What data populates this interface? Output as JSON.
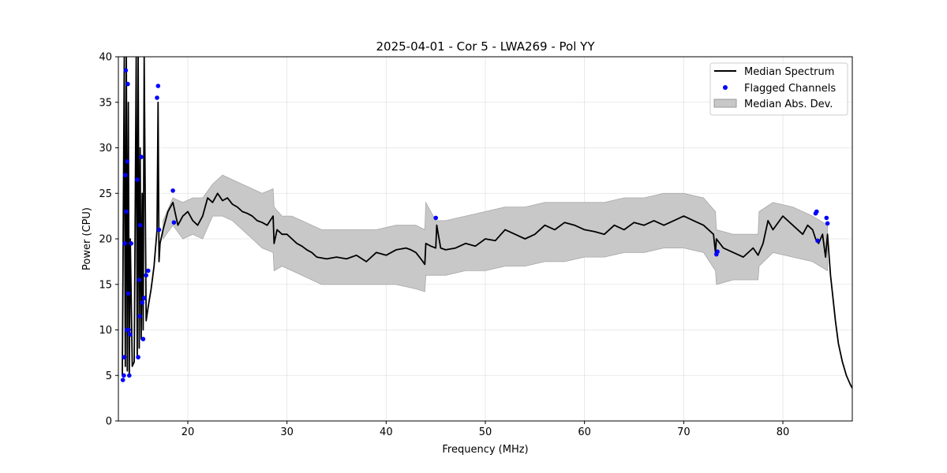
{
  "chart_data": {
    "type": "line",
    "title": "2025-04-01 - Cor 5 - LWA269 - Pol YY",
    "xlabel": "Frequency (MHz)",
    "ylabel": "Power (CPU)",
    "xlim": [
      13.0,
      87.0
    ],
    "ylim": [
      0,
      40
    ],
    "xticks": [
      20,
      30,
      40,
      50,
      60,
      70,
      80
    ],
    "yticks": [
      0,
      5,
      10,
      15,
      20,
      25,
      30,
      35,
      40
    ],
    "grid": true,
    "legend_position": "top-right",
    "legend": [
      {
        "label": "Median Spectrum",
        "kind": "line",
        "color": "#000000"
      },
      {
        "label": "Flagged Channels",
        "kind": "marker",
        "color": "#0000ff"
      },
      {
        "label": "Median Abs. Dev.",
        "kind": "patch",
        "color": "#c8c8c8"
      }
    ],
    "series": [
      {
        "name": "Median Spectrum",
        "color": "#000000",
        "x": [
          13.4,
          13.6,
          13.7,
          13.8,
          13.9,
          14.0,
          14.1,
          14.2,
          14.4,
          14.6,
          14.8,
          14.9,
          15.0,
          15.1,
          15.2,
          15.3,
          15.4,
          15.5,
          15.6,
          15.8,
          16.0,
          16.3,
          16.6,
          16.9,
          17.0,
          17.1,
          17.2,
          17.5,
          18.0,
          18.5,
          19.0,
          19.5,
          20.0,
          20.5,
          21.0,
          21.5,
          22.0,
          22.5,
          23.0,
          23.5,
          24.0,
          24.5,
          25.0,
          25.5,
          26.0,
          26.5,
          27.0,
          27.5,
          28.0,
          28.6,
          28.7,
          29.0,
          29.5,
          30.0,
          30.5,
          31.0,
          31.5,
          32.0,
          32.5,
          33.0,
          34.0,
          35.0,
          36.0,
          37.0,
          38.0,
          39.0,
          40.0,
          41.0,
          42.0,
          42.5,
          43.0,
          43.5,
          43.9,
          44.0,
          44.5,
          45.0,
          45.1,
          45.5,
          46.0,
          47.0,
          48.0,
          49.0,
          50.0,
          51.0,
          52.0,
          53.0,
          54.0,
          55.0,
          56.0,
          57.0,
          58.0,
          59.0,
          60.0,
          61.0,
          62.0,
          63.0,
          64.0,
          65.0,
          66.0,
          67.0,
          68.0,
          69.0,
          70.0,
          71.0,
          72.0,
          73.0,
          73.2,
          73.3,
          74.0,
          75.0,
          76.0,
          77.0,
          77.5,
          78.0,
          78.5,
          79.0,
          80.0,
          81.0,
          82.0,
          82.5,
          83.0,
          83.3,
          83.6,
          84.0,
          84.3,
          84.5,
          84.8,
          85.0,
          85.3,
          85.6,
          86.0,
          86.4,
          86.8,
          87.0
        ],
        "values": [
          5.0,
          40.0,
          6.0,
          40.0,
          5.5,
          35.0,
          5.0,
          20.0,
          6.0,
          6.5,
          40.0,
          7.0,
          40.0,
          8.0,
          30.0,
          9.0,
          25.0,
          10.0,
          40.0,
          11.0,
          12.5,
          14.5,
          17.0,
          21.0,
          35.0,
          17.5,
          19.5,
          21.0,
          23.0,
          24.0,
          21.5,
          22.5,
          23.0,
          22.0,
          21.5,
          22.5,
          24.5,
          24.0,
          25.0,
          24.2,
          24.5,
          23.8,
          23.5,
          23.0,
          22.8,
          22.5,
          22.0,
          21.8,
          21.5,
          22.5,
          19.5,
          21.0,
          20.5,
          20.5,
          20.0,
          19.5,
          19.2,
          18.8,
          18.5,
          18.0,
          17.8,
          18.0,
          17.8,
          18.2,
          17.5,
          18.5,
          18.2,
          18.8,
          19.0,
          18.8,
          18.5,
          17.8,
          17.2,
          19.5,
          19.2,
          19.0,
          21.5,
          19.0,
          18.8,
          19.0,
          19.5,
          19.2,
          20.0,
          19.8,
          21.0,
          20.5,
          20.0,
          20.5,
          21.5,
          21.0,
          21.8,
          21.5,
          21.0,
          20.8,
          20.5,
          21.5,
          21.0,
          21.8,
          21.5,
          22.0,
          21.5,
          22.0,
          22.5,
          22.0,
          21.5,
          20.5,
          18.5,
          20.0,
          19.0,
          18.5,
          18.0,
          19.0,
          18.2,
          19.5,
          22.0,
          21.0,
          22.5,
          21.5,
          20.5,
          21.5,
          21.0,
          20.0,
          19.5,
          20.5,
          18.0,
          20.5,
          16.0,
          14.0,
          11.0,
          8.5,
          6.5,
          5.0,
          4.0,
          3.6
        ]
      },
      {
        "name": "Median Abs. Dev.",
        "color": "#c8c8c8",
        "x": [
          17.5,
          18.5,
          19.5,
          20.5,
          21.5,
          22.5,
          23.5,
          24.5,
          25.5,
          26.5,
          27.5,
          28.6,
          28.7,
          29.5,
          30.5,
          31.5,
          32.5,
          33.5,
          35.0,
          37.0,
          39.0,
          41.0,
          43.0,
          43.9,
          44.0,
          45.0,
          46.0,
          48.0,
          50.0,
          52.0,
          54.0,
          56.0,
          58.0,
          60.0,
          62.0,
          64.0,
          66.0,
          68.0,
          70.0,
          72.0,
          73.2,
          73.3,
          75.0,
          77.5,
          77.6,
          79.0,
          81.0,
          83.0,
          84.5
        ],
        "upper": [
          22.0,
          24.5,
          24.0,
          24.5,
          24.5,
          26.0,
          27.0,
          26.5,
          26.0,
          25.5,
          25.0,
          25.5,
          23.5,
          22.5,
          22.5,
          22.0,
          21.5,
          21.0,
          21.0,
          21.0,
          21.0,
          21.5,
          21.5,
          21.0,
          24.0,
          22.0,
          22.0,
          22.5,
          23.0,
          23.5,
          23.5,
          24.0,
          24.0,
          24.0,
          24.0,
          24.5,
          24.5,
          25.0,
          25.0,
          24.5,
          23.0,
          21.0,
          20.5,
          20.5,
          23.0,
          24.0,
          23.5,
          22.5,
          21.5
        ],
        "lower": [
          20.0,
          21.5,
          20.0,
          20.5,
          20.0,
          22.5,
          22.5,
          22.0,
          21.0,
          20.0,
          19.0,
          18.5,
          16.5,
          17.0,
          16.5,
          16.0,
          15.5,
          15.0,
          15.0,
          15.0,
          15.0,
          15.0,
          14.5,
          14.2,
          16.0,
          16.0,
          16.0,
          16.5,
          16.5,
          17.0,
          17.0,
          17.5,
          17.5,
          18.0,
          18.0,
          18.5,
          18.5,
          19.0,
          19.0,
          18.5,
          16.5,
          15.0,
          15.5,
          15.5,
          17.0,
          18.5,
          18.0,
          17.5,
          16.5
        ]
      },
      {
        "name": "Flagged Channels",
        "color": "#0000ff",
        "x": [
          13.45,
          13.55,
          13.6,
          13.65,
          13.7,
          13.75,
          13.8,
          13.85,
          13.9,
          13.95,
          14.0,
          14.05,
          14.1,
          14.2,
          14.3,
          14.9,
          15.0,
          15.1,
          15.15,
          15.2,
          15.3,
          15.4,
          15.5,
          15.6,
          15.8,
          16.0,
          16.9,
          17.0,
          17.1,
          18.5,
          18.6,
          45.0,
          73.3,
          73.4,
          83.3,
          83.4,
          83.5,
          84.4,
          84.5
        ],
        "values": [
          4.5,
          5.0,
          7.0,
          19.5,
          27.0,
          38.5,
          23.0,
          10.0,
          28.5,
          37.0,
          14.0,
          10.0,
          5.0,
          9.5,
          19.5,
          26.5,
          7.0,
          15.5,
          11.5,
          21.5,
          29.0,
          13.0,
          9.0,
          13.5,
          16.0,
          16.5,
          35.5,
          36.8,
          21.0,
          25.3,
          21.8,
          22.3,
          18.3,
          18.6,
          22.8,
          23.0,
          19.8,
          22.3,
          21.7
        ]
      }
    ]
  }
}
